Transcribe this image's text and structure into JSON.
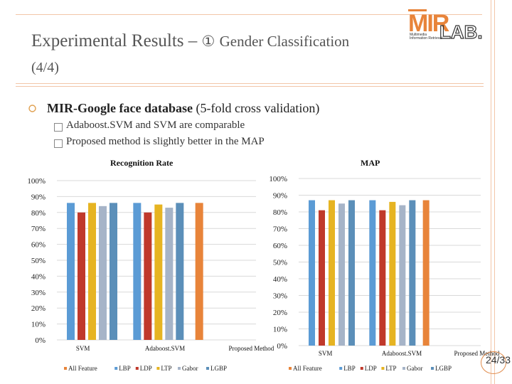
{
  "slide": {
    "title_main": "Experimental Results –",
    "title_circle": "①",
    "title_topic": "Gender Classification",
    "title_part": "(4/4)",
    "bullet_bold": "MIR-Google face database",
    "bullet_rest": " (5-fold cross validation)",
    "sub1": "Adaboost.SVM and SVM are comparable",
    "sub2": "Proposed method is slightly better  in the MAP",
    "page": "24/33",
    "logo": "MIR LAB. Multimedia Information Retrieval"
  },
  "colors": {
    "All Feature": "#e8843a",
    "LBP": "#5b9bd5",
    "LDP": "#c0392b",
    "LTP": "#e6b422",
    "Gabor": "#a6b4c8",
    "LGBP": "#5b8fb9"
  },
  "chart_data": [
    {
      "type": "bar",
      "title": "Recognition Rate",
      "xlabel": "",
      "ylabel": "",
      "ylim": [
        0,
        100
      ],
      "y_unit": "%",
      "y_ticks": [
        "0%",
        "10%",
        "20%",
        "30%",
        "40%",
        "50%",
        "60%",
        "70%",
        "80%",
        "90%",
        "100%"
      ],
      "categories": [
        "SVM",
        "Adaboost.SVM",
        "Proposed Method"
      ],
      "legend_position": "bottom",
      "grid": true,
      "series": [
        {
          "name": "All Feature",
          "values": [
            null,
            null,
            86
          ]
        },
        {
          "name": "LBP",
          "values": [
            86,
            86,
            null
          ]
        },
        {
          "name": "LDP",
          "values": [
            80,
            80,
            null
          ]
        },
        {
          "name": "LTP",
          "values": [
            86,
            85,
            null
          ]
        },
        {
          "name": "Gabor",
          "values": [
            84,
            83,
            null
          ]
        },
        {
          "name": "LGBP",
          "values": [
            86,
            86,
            null
          ]
        }
      ]
    },
    {
      "type": "bar",
      "title": "MAP",
      "xlabel": "",
      "ylabel": "",
      "ylim": [
        0,
        100
      ],
      "y_unit": "%",
      "y_ticks": [
        "0%",
        "10%",
        "20%",
        "30%",
        "40%",
        "50%",
        "60%",
        "70%",
        "80%",
        "90%",
        "100%"
      ],
      "categories": [
        "SVM",
        "Adaboost.SVM",
        "Proposed Method"
      ],
      "legend_position": "bottom",
      "grid": true,
      "series": [
        {
          "name": "All Feature",
          "values": [
            null,
            null,
            87
          ]
        },
        {
          "name": "LBP",
          "values": [
            87,
            87,
            null
          ]
        },
        {
          "name": "LDP",
          "values": [
            81,
            81,
            null
          ]
        },
        {
          "name": "LTP",
          "values": [
            87,
            86,
            null
          ]
        },
        {
          "name": "Gabor",
          "values": [
            85,
            84,
            null
          ]
        },
        {
          "name": "LGBP",
          "values": [
            87,
            87,
            null
          ]
        }
      ]
    }
  ]
}
